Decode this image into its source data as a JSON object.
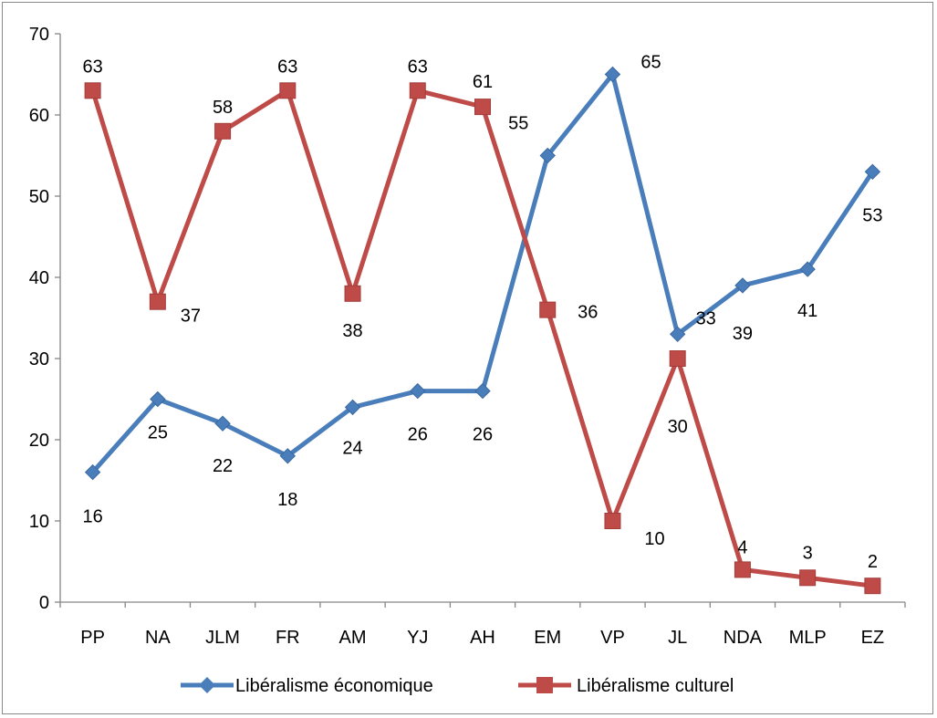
{
  "chart_data": {
    "type": "line",
    "categories": [
      "PP",
      "NA",
      "JLM",
      "FR",
      "AM",
      "YJ",
      "AH",
      "EM",
      "VP",
      "JL",
      "NDA",
      "MLP",
      "EZ"
    ],
    "ylim": [
      0,
      70
    ],
    "yticks": [
      0,
      10,
      20,
      30,
      40,
      50,
      60,
      70
    ],
    "grid": false,
    "legend": "bottom",
    "series": [
      {
        "name": "Libéralisme économique",
        "color": "#4a7ebb",
        "marker": "diamond",
        "values": [
          16,
          25,
          22,
          18,
          24,
          26,
          26,
          55,
          65,
          33,
          39,
          41,
          53
        ]
      },
      {
        "name": "Libéralisme culturel",
        "color": "#be4b48",
        "marker": "square",
        "values": [
          63,
          37,
          58,
          63,
          38,
          63,
          61,
          36,
          10,
          30,
          4,
          3,
          2
        ]
      }
    ]
  }
}
